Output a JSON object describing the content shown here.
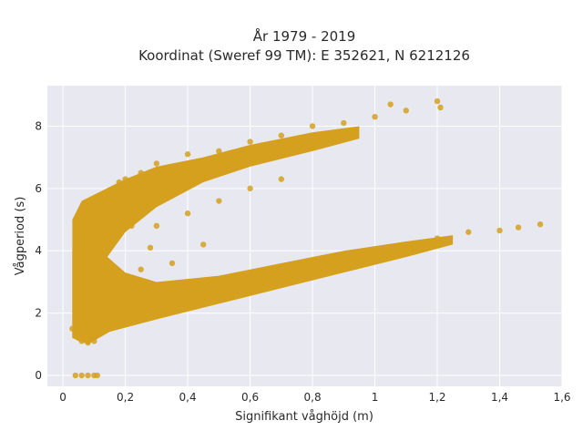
{
  "chart_data": {
    "type": "scatter",
    "title_line1": "År 1979 - 2019",
    "title_line2": "Koordinat (Sweref 99 TM): E 352621, N 6212126",
    "xlabel": "Signifikant våghöjd (m)",
    "ylabel": "Vågperiod (s)",
    "xlim": [
      -0.05,
      1.6
    ],
    "ylim": [
      -0.35,
      9.3
    ],
    "xticks": [
      0,
      0.2,
      0.4,
      0.6,
      0.8,
      1.0,
      1.2,
      1.4,
      1.6
    ],
    "xtick_labels": [
      "0",
      "0,2",
      "0,4",
      "0,6",
      "0,8",
      "1",
      "1,2",
      "1,4",
      "1,6"
    ],
    "yticks": [
      0,
      2,
      4,
      6,
      8
    ],
    "ytick_labels": [
      "0",
      "2",
      "4",
      "6",
      "8"
    ],
    "grid": true,
    "colors": {
      "point": "#D4A01E",
      "plot_bg": "#E8E8F0",
      "grid": "#ffffff"
    },
    "series": [
      {
        "values": [
          {
            "x": 0.04,
            "y": 0.0
          },
          {
            "x": 0.06,
            "y": 0.0
          },
          {
            "x": 0.08,
            "y": 0.0
          },
          {
            "x": 0.1,
            "y": 0.0
          },
          {
            "x": 0.11,
            "y": 0.0
          },
          {
            "x": 0.03,
            "y": 1.5
          },
          {
            "x": 0.05,
            "y": 1.2
          },
          {
            "x": 0.06,
            "y": 1.1
          },
          {
            "x": 0.08,
            "y": 1.05
          },
          {
            "x": 0.1,
            "y": 1.1
          },
          {
            "x": 0.04,
            "y": 2.5
          },
          {
            "x": 0.05,
            "y": 3.5
          },
          {
            "x": 0.05,
            "y": 4.5
          },
          {
            "x": 0.06,
            "y": 5.0
          },
          {
            "x": 0.08,
            "y": 5.5
          },
          {
            "x": 0.1,
            "y": 4.0
          },
          {
            "x": 0.12,
            "y": 3.0
          },
          {
            "x": 0.15,
            "y": 2.5
          },
          {
            "x": 0.14,
            "y": 5.8
          },
          {
            "x": 0.18,
            "y": 6.2
          },
          {
            "x": 0.2,
            "y": 6.3
          },
          {
            "x": 0.25,
            "y": 6.5
          },
          {
            "x": 0.3,
            "y": 6.8
          },
          {
            "x": 0.4,
            "y": 7.1
          },
          {
            "x": 0.5,
            "y": 7.2
          },
          {
            "x": 0.6,
            "y": 7.5
          },
          {
            "x": 0.7,
            "y": 7.7
          },
          {
            "x": 0.8,
            "y": 8.0
          },
          {
            "x": 0.9,
            "y": 8.1
          },
          {
            "x": 1.0,
            "y": 8.3
          },
          {
            "x": 1.05,
            "y": 8.7
          },
          {
            "x": 1.1,
            "y": 8.5
          },
          {
            "x": 1.2,
            "y": 8.8
          },
          {
            "x": 1.21,
            "y": 8.6
          },
          {
            "x": 0.2,
            "y": 2.0
          },
          {
            "x": 0.3,
            "y": 2.3
          },
          {
            "x": 0.4,
            "y": 2.6
          },
          {
            "x": 0.5,
            "y": 2.9
          },
          {
            "x": 0.6,
            "y": 3.1
          },
          {
            "x": 0.7,
            "y": 3.3
          },
          {
            "x": 0.8,
            "y": 3.6
          },
          {
            "x": 0.9,
            "y": 3.8
          },
          {
            "x": 1.0,
            "y": 4.0
          },
          {
            "x": 1.1,
            "y": 4.2
          },
          {
            "x": 1.2,
            "y": 4.4
          },
          {
            "x": 1.3,
            "y": 4.6
          },
          {
            "x": 1.4,
            "y": 4.65
          },
          {
            "x": 1.46,
            "y": 4.75
          },
          {
            "x": 1.53,
            "y": 4.85
          },
          {
            "x": 0.3,
            "y": 4.8
          },
          {
            "x": 0.4,
            "y": 5.2
          },
          {
            "x": 0.5,
            "y": 5.6
          },
          {
            "x": 0.6,
            "y": 6.0
          },
          {
            "x": 0.7,
            "y": 6.3
          },
          {
            "x": 0.25,
            "y": 3.4
          },
          {
            "x": 0.35,
            "y": 3.6
          },
          {
            "x": 0.45,
            "y": 4.2
          },
          {
            "x": 0.28,
            "y": 4.1
          },
          {
            "x": 0.22,
            "y": 4.8
          }
        ]
      }
    ]
  }
}
